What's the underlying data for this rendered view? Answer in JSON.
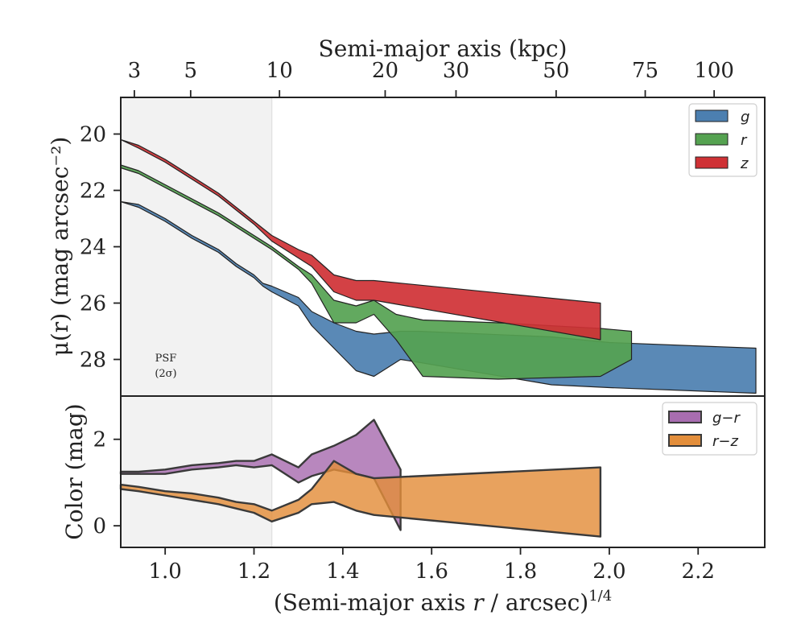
{
  "chart_data": [
    {
      "type": "area",
      "title": "",
      "top_xlabel": "Semi-major axis (kpc)",
      "top_ticks": [
        {
          "kpc": 3,
          "label": "3"
        },
        {
          "kpc": 5,
          "label": "5"
        },
        {
          "kpc": 10,
          "label": "10"
        },
        {
          "kpc": 20,
          "label": "20"
        },
        {
          "kpc": 30,
          "label": "30"
        },
        {
          "kpc": 50,
          "label": "50"
        },
        {
          "kpc": 75,
          "label": "75"
        },
        {
          "kpc": 100,
          "label": "100"
        }
      ],
      "ylabel": "μ(r) (mag arcsec⁻²)",
      "ylim": [
        29.3,
        18.7
      ],
      "y_inverted": true,
      "yticks": [
        20,
        22,
        24,
        26,
        28
      ],
      "xlim": [
        0.9,
        2.35
      ],
      "psf_shade_max": 1.24,
      "psf_label_line1": "PSF",
      "psf_label_line2": "(2σ)",
      "legend_position": "top-right",
      "series": [
        {
          "name": "g",
          "color": "#4c7fb0",
          "x": [
            0.9,
            0.94,
            1.0,
            1.06,
            1.12,
            1.16,
            1.2,
            1.22,
            1.24,
            1.3,
            1.33,
            1.38,
            1.43,
            1.47,
            1.53,
            1.57,
            1.87,
            2.0,
            2.33
          ],
          "y_upper": [
            22.4,
            22.5,
            23.0,
            23.6,
            24.1,
            24.6,
            25.0,
            25.3,
            25.4,
            25.8,
            26.3,
            26.7,
            27.0,
            27.1,
            27.0,
            27.0,
            27.2,
            27.4,
            27.6
          ],
          "y_lower": [
            22.4,
            22.6,
            23.1,
            23.7,
            24.2,
            24.7,
            25.1,
            25.4,
            25.6,
            26.1,
            26.8,
            27.6,
            28.4,
            28.6,
            28.0,
            28.1,
            28.9,
            29.0,
            29.2
          ]
        },
        {
          "name": "r",
          "color": "#55a251",
          "x": [
            0.9,
            0.94,
            1.0,
            1.06,
            1.12,
            1.16,
            1.2,
            1.24,
            1.3,
            1.33,
            1.38,
            1.43,
            1.47,
            1.52,
            1.58,
            1.75,
            1.98,
            2.05
          ],
          "y_upper": [
            21.1,
            21.3,
            21.8,
            22.3,
            22.8,
            23.2,
            23.6,
            24.0,
            24.7,
            25.0,
            25.9,
            26.1,
            25.9,
            26.4,
            26.6,
            26.7,
            26.9,
            27.0
          ],
          "y_lower": [
            21.2,
            21.4,
            21.9,
            22.4,
            22.9,
            23.3,
            23.7,
            24.1,
            24.8,
            25.3,
            26.7,
            26.7,
            26.4,
            27.3,
            28.6,
            28.7,
            28.6,
            28.0
          ]
        },
        {
          "name": "z",
          "color": "#cf3135",
          "x": [
            0.9,
            0.94,
            1.0,
            1.06,
            1.12,
            1.16,
            1.2,
            1.24,
            1.3,
            1.33,
            1.38,
            1.43,
            1.47,
            1.98
          ],
          "y_upper": [
            20.2,
            20.4,
            20.9,
            21.5,
            22.1,
            22.6,
            23.1,
            23.6,
            24.1,
            24.3,
            25.0,
            25.2,
            25.2,
            26.0
          ],
          "y_lower": [
            20.2,
            20.5,
            21.0,
            21.6,
            22.2,
            22.7,
            23.2,
            23.8,
            24.4,
            24.7,
            25.6,
            25.9,
            25.9,
            27.3
          ]
        }
      ]
    },
    {
      "type": "area",
      "title": "",
      "xlabel": "(Semi-major axis r / arcsec)^1/4",
      "xlabel_main": "(Semi-major axis ",
      "xlabel_var": "r",
      "xlabel_rest": " / arcsec)",
      "xlabel_exp": "1/4",
      "ylabel": "Color (mag)",
      "ylim": [
        -0.5,
        3.0
      ],
      "yticks": [
        0,
        2
      ],
      "xlim": [
        0.9,
        2.35
      ],
      "xticks": [
        1.0,
        1.2,
        1.4,
        1.6,
        1.8,
        2.0,
        2.2
      ],
      "legend_position": "top-right",
      "series": [
        {
          "name": "g−r",
          "color": "#a86db0",
          "x": [
            0.9,
            0.94,
            1.0,
            1.06,
            1.12,
            1.16,
            1.2,
            1.24,
            1.3,
            1.33,
            1.38,
            1.43,
            1.47,
            1.53
          ],
          "y_upper": [
            1.25,
            1.25,
            1.3,
            1.4,
            1.45,
            1.5,
            1.5,
            1.65,
            1.35,
            1.65,
            1.85,
            2.1,
            2.45,
            1.3
          ],
          "y_lower": [
            1.2,
            1.2,
            1.2,
            1.3,
            1.35,
            1.4,
            1.35,
            1.4,
            1.0,
            1.15,
            1.3,
            1.2,
            1.1,
            -0.1
          ]
        },
        {
          "name": "r−z",
          "color": "#e38e3b",
          "x": [
            0.9,
            0.94,
            1.0,
            1.06,
            1.12,
            1.16,
            1.2,
            1.24,
            1.3,
            1.33,
            1.38,
            1.43,
            1.47,
            1.98
          ],
          "y_upper": [
            0.95,
            0.9,
            0.8,
            0.75,
            0.65,
            0.55,
            0.5,
            0.35,
            0.6,
            0.85,
            1.5,
            1.2,
            1.1,
            1.35
          ],
          "y_lower": [
            0.85,
            0.8,
            0.7,
            0.6,
            0.5,
            0.4,
            0.3,
            0.1,
            0.3,
            0.5,
            0.55,
            0.35,
            0.25,
            -0.25
          ]
        }
      ]
    }
  ]
}
